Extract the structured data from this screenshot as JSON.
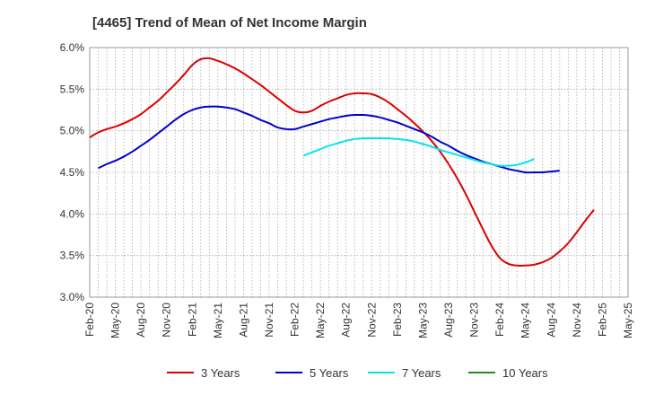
{
  "chart_data": {
    "type": "line",
    "title": "[4465]  Trend of Mean of Net Income Margin",
    "xlabel": "",
    "ylabel": "",
    "ylim": [
      3.0,
      6.0
    ],
    "y_ticks": [
      "3.0%",
      "3.5%",
      "4.0%",
      "4.5%",
      "5.0%",
      "5.5%",
      "6.0%"
    ],
    "x_ticks": [
      "Feb-20",
      "May-20",
      "Aug-20",
      "Nov-20",
      "Feb-21",
      "May-21",
      "Aug-21",
      "Nov-21",
      "Feb-22",
      "May-22",
      "Aug-22",
      "Nov-22",
      "Feb-23",
      "May-23",
      "Aug-23",
      "Nov-23",
      "Feb-24",
      "May-24",
      "Aug-24",
      "Nov-24",
      "Feb-25",
      "May-25"
    ],
    "grid": true,
    "legend_position": "bottom",
    "series": [
      {
        "name": "3 Years",
        "color": "#dd0000",
        "points": [
          [
            "Feb-20",
            4.92
          ],
          [
            "Mar-20",
            4.98
          ],
          [
            "Apr-20",
            5.02
          ],
          [
            "May-20",
            5.05
          ],
          [
            "Jun-20",
            5.09
          ],
          [
            "Jul-20",
            5.14
          ],
          [
            "Aug-20",
            5.2
          ],
          [
            "Sep-20",
            5.28
          ],
          [
            "Oct-20",
            5.36
          ],
          [
            "Nov-20",
            5.46
          ],
          [
            "Dec-20",
            5.56
          ],
          [
            "Jan-21",
            5.67
          ],
          [
            "Feb-21",
            5.79
          ],
          [
            "Mar-21",
            5.86
          ],
          [
            "Apr-21",
            5.87
          ],
          [
            "May-21",
            5.84
          ],
          [
            "Jun-21",
            5.8
          ],
          [
            "Jul-21",
            5.75
          ],
          [
            "Aug-21",
            5.69
          ],
          [
            "Sep-21",
            5.62
          ],
          [
            "Oct-21",
            5.55
          ],
          [
            "Nov-21",
            5.47
          ],
          [
            "Dec-21",
            5.39
          ],
          [
            "Jan-22",
            5.31
          ],
          [
            "Feb-22",
            5.24
          ],
          [
            "Mar-22",
            5.22
          ],
          [
            "Apr-22",
            5.24
          ],
          [
            "May-22",
            5.3
          ],
          [
            "Jun-22",
            5.35
          ],
          [
            "Jul-22",
            5.39
          ],
          [
            "Aug-22",
            5.43
          ],
          [
            "Sep-22",
            5.45
          ],
          [
            "Oct-22",
            5.45
          ],
          [
            "Nov-22",
            5.44
          ],
          [
            "Dec-22",
            5.4
          ],
          [
            "Jan-23",
            5.34
          ],
          [
            "Feb-23",
            5.26
          ],
          [
            "Mar-23",
            5.18
          ],
          [
            "Apr-23",
            5.09
          ],
          [
            "May-23",
            4.99
          ],
          [
            "Jun-23",
            4.88
          ],
          [
            "Jul-23",
            4.75
          ],
          [
            "Aug-23",
            4.6
          ],
          [
            "Sep-23",
            4.43
          ],
          [
            "Oct-23",
            4.24
          ],
          [
            "Nov-23",
            4.03
          ],
          [
            "Dec-23",
            3.82
          ],
          [
            "Jan-24",
            3.62
          ],
          [
            "Feb-24",
            3.47
          ],
          [
            "Mar-24",
            3.4
          ],
          [
            "Apr-24",
            3.38
          ],
          [
            "May-24",
            3.38
          ],
          [
            "Jun-24",
            3.39
          ],
          [
            "Jul-24",
            3.42
          ],
          [
            "Aug-24",
            3.47
          ],
          [
            "Sep-24",
            3.55
          ],
          [
            "Oct-24",
            3.65
          ],
          [
            "Nov-24",
            3.78
          ],
          [
            "Dec-24",
            3.92
          ],
          [
            "Jan-25",
            4.05
          ]
        ]
      },
      {
        "name": "5 Years",
        "color": "#0000cc",
        "points": [
          [
            "Mar-20",
            4.55
          ],
          [
            "Apr-20",
            4.6
          ],
          [
            "May-20",
            4.64
          ],
          [
            "Jun-20",
            4.69
          ],
          [
            "Jul-20",
            4.75
          ],
          [
            "Aug-20",
            4.82
          ],
          [
            "Sep-20",
            4.89
          ],
          [
            "Oct-20",
            4.97
          ],
          [
            "Nov-20",
            5.05
          ],
          [
            "Dec-20",
            5.13
          ],
          [
            "Jan-21",
            5.2
          ],
          [
            "Feb-21",
            5.25
          ],
          [
            "Mar-21",
            5.28
          ],
          [
            "Apr-21",
            5.29
          ],
          [
            "May-21",
            5.29
          ],
          [
            "Jun-21",
            5.28
          ],
          [
            "Jul-21",
            5.26
          ],
          [
            "Aug-21",
            5.22
          ],
          [
            "Sep-21",
            5.18
          ],
          [
            "Oct-21",
            5.13
          ],
          [
            "Nov-21",
            5.09
          ],
          [
            "Dec-21",
            5.04
          ],
          [
            "Jan-22",
            5.02
          ],
          [
            "Feb-22",
            5.02
          ],
          [
            "Mar-22",
            5.05
          ],
          [
            "Apr-22",
            5.08
          ],
          [
            "May-22",
            5.11
          ],
          [
            "Jun-22",
            5.14
          ],
          [
            "Jul-22",
            5.16
          ],
          [
            "Aug-22",
            5.18
          ],
          [
            "Sep-22",
            5.19
          ],
          [
            "Oct-22",
            5.19
          ],
          [
            "Nov-22",
            5.18
          ],
          [
            "Dec-22",
            5.16
          ],
          [
            "Jan-23",
            5.13
          ],
          [
            "Feb-23",
            5.1
          ],
          [
            "Mar-23",
            5.06
          ],
          [
            "Apr-23",
            5.02
          ],
          [
            "May-23",
            4.98
          ],
          [
            "Jun-23",
            4.93
          ],
          [
            "Jul-23",
            4.87
          ],
          [
            "Aug-23",
            4.82
          ],
          [
            "Sep-23",
            4.76
          ],
          [
            "Oct-23",
            4.71
          ],
          [
            "Nov-23",
            4.67
          ],
          [
            "Dec-23",
            4.63
          ],
          [
            "Jan-24",
            4.6
          ],
          [
            "Feb-24",
            4.57
          ],
          [
            "Mar-24",
            4.54
          ],
          [
            "Apr-24",
            4.52
          ],
          [
            "May-24",
            4.5
          ],
          [
            "Jun-24",
            4.5
          ],
          [
            "Jul-24",
            4.5
          ],
          [
            "Aug-24",
            4.51
          ],
          [
            "Sep-24",
            4.52
          ]
        ]
      },
      {
        "name": "7 Years",
        "color": "#00e5ee",
        "points": [
          [
            "Mar-22",
            4.7
          ],
          [
            "Apr-22",
            4.74
          ],
          [
            "May-22",
            4.78
          ],
          [
            "Jun-22",
            4.82
          ],
          [
            "Jul-22",
            4.85
          ],
          [
            "Aug-22",
            4.88
          ],
          [
            "Sep-22",
            4.9
          ],
          [
            "Oct-22",
            4.91
          ],
          [
            "Nov-22",
            4.91
          ],
          [
            "Dec-22",
            4.91
          ],
          [
            "Jan-23",
            4.91
          ],
          [
            "Feb-23",
            4.9
          ],
          [
            "Mar-23",
            4.89
          ],
          [
            "Apr-23",
            4.87
          ],
          [
            "May-23",
            4.84
          ],
          [
            "Jun-23",
            4.81
          ],
          [
            "Jul-23",
            4.77
          ],
          [
            "Aug-23",
            4.74
          ],
          [
            "Sep-23",
            4.71
          ],
          [
            "Oct-23",
            4.68
          ],
          [
            "Nov-23",
            4.65
          ],
          [
            "Dec-23",
            4.62
          ],
          [
            "Jan-24",
            4.6
          ],
          [
            "Feb-24",
            4.58
          ],
          [
            "Mar-24",
            4.58
          ],
          [
            "Apr-24",
            4.59
          ],
          [
            "May-24",
            4.62
          ],
          [
            "Jun-24",
            4.66
          ]
        ]
      },
      {
        "name": "10 Years",
        "color": "#228b22",
        "points": []
      }
    ]
  }
}
